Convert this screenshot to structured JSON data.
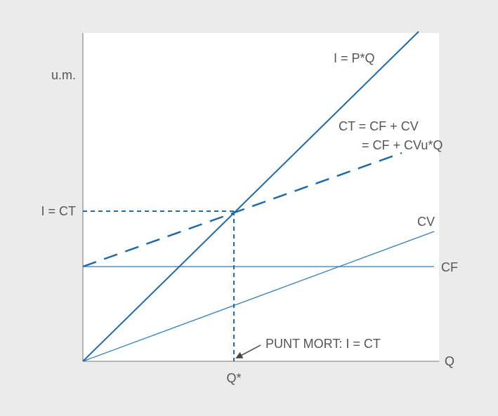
{
  "axis_labels": {
    "y": "u.m.",
    "x": "Q",
    "x_mark": "Q*",
    "y_mark": "I = CT"
  },
  "curves": {
    "income": "I = P*Q",
    "total_cost_1": "CT = CF + CV",
    "total_cost_2": "= CF + CVu*Q",
    "variable_cost": "CV",
    "fixed_cost": "CF"
  },
  "annotation": "PUNT MORT: I = CT"
}
